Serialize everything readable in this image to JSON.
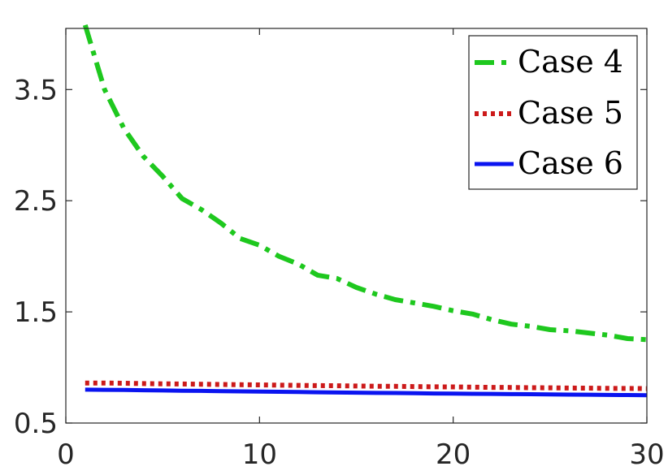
{
  "chart_data": {
    "type": "line",
    "title": "",
    "xlabel": "",
    "ylabel": "",
    "xlim": [
      0,
      30
    ],
    "ylim": [
      0.5,
      4.05
    ],
    "xticks": [
      0,
      10,
      20,
      30
    ],
    "xtick_labels": [
      "0",
      "10",
      "20",
      "30"
    ],
    "yticks": [
      0.5,
      1.5,
      2.5,
      3.5
    ],
    "ytick_labels": [
      "0.5",
      "1.5",
      "2.5",
      "3.5"
    ],
    "grid": false,
    "legend_position": "top-right",
    "x": [
      1,
      2,
      3,
      4,
      5,
      6,
      7,
      8,
      9,
      10,
      11,
      12,
      13,
      14,
      15,
      16,
      17,
      18,
      19,
      20,
      21,
      22,
      23,
      24,
      25,
      26,
      27,
      28,
      29,
      30
    ],
    "series": [
      {
        "name": "Case 4",
        "color": "#1ec81e",
        "style": "dash-dot",
        "values": [
          4.08,
          3.5,
          3.15,
          2.9,
          2.72,
          2.52,
          2.42,
          2.3,
          2.16,
          2.1,
          2.0,
          1.93,
          1.83,
          1.8,
          1.72,
          1.66,
          1.61,
          1.58,
          1.55,
          1.51,
          1.48,
          1.43,
          1.39,
          1.37,
          1.34,
          1.33,
          1.31,
          1.29,
          1.26,
          1.25
        ]
      },
      {
        "name": "Case 5",
        "color": "#cc1a1a",
        "style": "dotted",
        "values": [
          0.86,
          0.86,
          0.858,
          0.855,
          0.853,
          0.851,
          0.849,
          0.847,
          0.845,
          0.843,
          0.841,
          0.839,
          0.837,
          0.835,
          0.833,
          0.831,
          0.83,
          0.828,
          0.826,
          0.825,
          0.823,
          0.821,
          0.82,
          0.818,
          0.817,
          0.815,
          0.814,
          0.812,
          0.811,
          0.81
        ]
      },
      {
        "name": "Case 6",
        "color": "#0a14f0",
        "style": "solid",
        "values": [
          0.8,
          0.799,
          0.797,
          0.795,
          0.793,
          0.791,
          0.789,
          0.787,
          0.785,
          0.783,
          0.781,
          0.779,
          0.777,
          0.775,
          0.773,
          0.771,
          0.77,
          0.768,
          0.766,
          0.765,
          0.763,
          0.762,
          0.76,
          0.759,
          0.757,
          0.756,
          0.755,
          0.753,
          0.752,
          0.75
        ]
      }
    ]
  }
}
